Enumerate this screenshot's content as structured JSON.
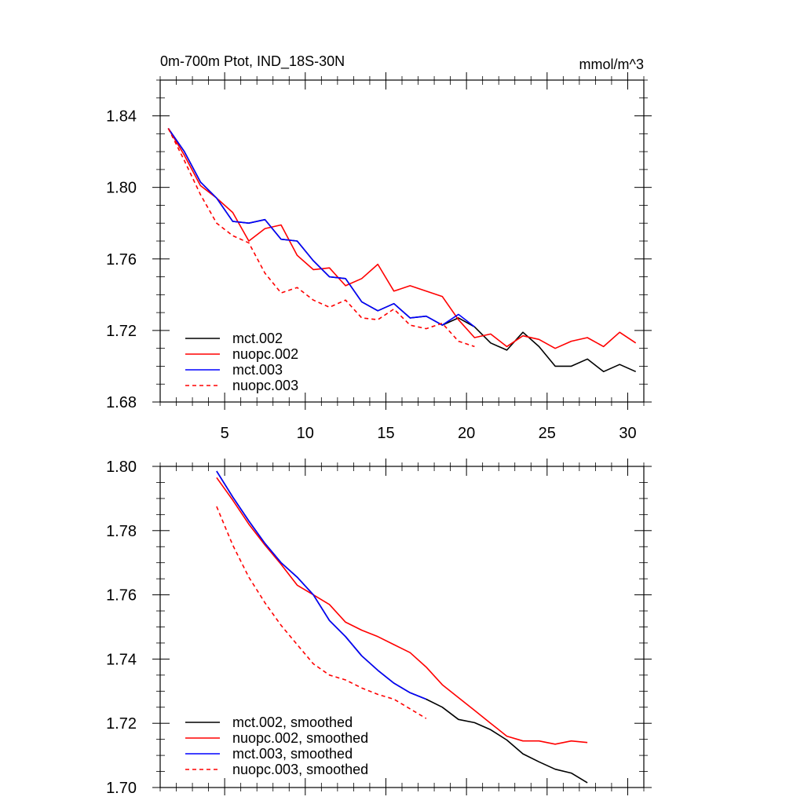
{
  "chart_data": [
    {
      "type": "line",
      "title": "0m-700m Ptot, IND_18S-30N",
      "units": "mmol/m^3",
      "xlim": [
        1,
        31
      ],
      "ylim": [
        1.68,
        1.86
      ],
      "xticks": [
        5,
        10,
        15,
        20,
        25,
        30
      ],
      "xtick_labels": [
        "5",
        "10",
        "15",
        "20",
        "25",
        "30"
      ],
      "yticks": [
        1.68,
        1.72,
        1.76,
        1.8,
        1.84
      ],
      "ytick_labels": [
        "1.68",
        "1.72",
        "1.76",
        "1.80",
        "1.84"
      ],
      "legend_position": "bottom-left",
      "series": [
        {
          "name": "mct.002",
          "color": "#000000",
          "dash": "solid",
          "x": [
            1.5,
            2.5,
            3.5,
            4.5,
            5.5,
            6.5,
            7.5,
            8.5,
            9.5,
            10.5,
            11.5,
            12.5,
            13.5,
            14.5,
            15.5,
            16.5,
            17.5,
            18.5,
            19.5,
            20.5,
            21.5,
            22.5,
            23.5,
            24.5,
            25.5,
            26.5,
            27.5,
            28.5,
            29.5,
            30.5
          ],
          "y": [
            1.833,
            1.82,
            1.803,
            1.794,
            1.781,
            1.78,
            1.782,
            1.771,
            1.77,
            1.759,
            1.75,
            1.749,
            1.736,
            1.731,
            1.735,
            1.727,
            1.728,
            1.723,
            1.727,
            1.722,
            1.713,
            1.709,
            1.719,
            1.711,
            1.7,
            1.7,
            1.704,
            1.697,
            1.701,
            1.697
          ]
        },
        {
          "name": "nuopc.002",
          "color": "#ff0000",
          "dash": "solid",
          "x": [
            1.5,
            2.5,
            3.5,
            4.5,
            5.5,
            6.5,
            7.5,
            8.5,
            9.5,
            10.5,
            11.5,
            12.5,
            13.5,
            14.5,
            15.5,
            16.5,
            17.5,
            18.5,
            19.5,
            20.5,
            21.5,
            22.5,
            23.5,
            24.5,
            25.5,
            26.5,
            27.5,
            28.5,
            29.5,
            30.5
          ],
          "y": [
            1.833,
            1.818,
            1.801,
            1.794,
            1.786,
            1.77,
            1.777,
            1.779,
            1.762,
            1.754,
            1.755,
            1.745,
            1.749,
            1.757,
            1.742,
            1.745,
            1.742,
            1.739,
            1.726,
            1.716,
            1.718,
            1.711,
            1.717,
            1.715,
            1.71,
            1.714,
            1.716,
            1.711,
            1.719,
            1.713
          ]
        },
        {
          "name": "mct.003",
          "color": "#0000ff",
          "dash": "solid",
          "x": [
            1.5,
            2.5,
            3.5,
            4.5,
            5.5,
            6.5,
            7.5,
            8.5,
            9.5,
            10.5,
            11.5,
            12.5,
            13.5,
            14.5,
            15.5,
            16.5,
            17.5,
            18.5,
            19.5,
            20.5
          ],
          "y": [
            1.833,
            1.82,
            1.803,
            1.794,
            1.781,
            1.78,
            1.782,
            1.771,
            1.77,
            1.759,
            1.75,
            1.749,
            1.736,
            1.731,
            1.735,
            1.727,
            1.728,
            1.723,
            1.729,
            1.722
          ]
        },
        {
          "name": "nuopc.003",
          "color": "#ff0000",
          "dash": "dashed",
          "x": [
            1.5,
            2.5,
            3.5,
            4.5,
            5.5,
            6.5,
            7.5,
            8.5,
            9.5,
            10.5,
            11.5,
            12.5,
            13.5,
            14.5,
            15.5,
            16.5,
            17.5,
            18.5,
            19.5,
            20.5
          ],
          "y": [
            1.833,
            1.815,
            1.796,
            1.78,
            1.773,
            1.769,
            1.752,
            1.741,
            1.744,
            1.737,
            1.733,
            1.737,
            1.727,
            1.726,
            1.732,
            1.723,
            1.721,
            1.724,
            1.714,
            1.711
          ]
        }
      ]
    },
    {
      "type": "line",
      "xlim": [
        1,
        31
      ],
      "ylim": [
        1.7,
        1.8
      ],
      "xticks": [
        5,
        10,
        15,
        20,
        25,
        30
      ],
      "yticks": [
        1.7,
        1.72,
        1.74,
        1.76,
        1.78,
        1.8
      ],
      "ytick_labels": [
        "1.70",
        "1.72",
        "1.74",
        "1.76",
        "1.78",
        "1.80"
      ],
      "legend_position": "bottom-left",
      "series": [
        {
          "name": "mct.002, smoothed",
          "color": "#000000",
          "dash": "solid",
          "x": [
            4.5,
            5.5,
            6.5,
            7.5,
            8.5,
            9.5,
            10.5,
            11.5,
            12.5,
            13.5,
            14.5,
            15.5,
            16.5,
            17.5,
            18.5,
            19.5,
            20.5,
            21.5,
            22.5,
            23.5,
            24.5,
            25.5,
            26.5,
            27.5
          ],
          "y": [
            1.7985,
            1.7905,
            1.783,
            1.776,
            1.77,
            1.7655,
            1.76,
            1.752,
            1.747,
            1.741,
            1.7365,
            1.7325,
            1.7295,
            1.7275,
            1.725,
            1.7212,
            1.7202,
            1.718,
            1.7148,
            1.7105,
            1.708,
            1.7057,
            1.7045,
            1.7015
          ]
        },
        {
          "name": "nuopc.002, smoothed",
          "color": "#ff0000",
          "dash": "solid",
          "x": [
            4.5,
            5.5,
            6.5,
            7.5,
            8.5,
            9.5,
            10.5,
            11.5,
            12.5,
            13.5,
            14.5,
            15.5,
            16.5,
            17.5,
            18.5,
            19.5,
            20.5,
            21.5,
            22.5,
            23.5,
            24.5,
            25.5,
            26.5,
            27.5
          ],
          "y": [
            1.7965,
            1.7895,
            1.782,
            1.7755,
            1.7695,
            1.763,
            1.76,
            1.757,
            1.7515,
            1.749,
            1.747,
            1.7445,
            1.742,
            1.7375,
            1.732,
            1.728,
            1.724,
            1.72,
            1.716,
            1.7145,
            1.7145,
            1.7135,
            1.7145,
            1.714
          ]
        },
        {
          "name": "mct.003, smoothed",
          "color": "#0000ff",
          "dash": "solid",
          "x": [
            4.5,
            5.5,
            6.5,
            7.5,
            8.5,
            9.5,
            10.5,
            11.5,
            12.5,
            13.5,
            14.5,
            15.5,
            16.5,
            17.5
          ],
          "y": [
            1.7985,
            1.7905,
            1.783,
            1.776,
            1.77,
            1.7655,
            1.76,
            1.752,
            1.747,
            1.741,
            1.7365,
            1.7325,
            1.7295,
            1.7275
          ]
        },
        {
          "name": "nuopc.003, smoothed",
          "color": "#ff0000",
          "dash": "dashed",
          "x": [
            4.5,
            5.5,
            6.5,
            7.5,
            8.5,
            9.5,
            10.5,
            11.5,
            12.5,
            13.5,
            14.5,
            15.5,
            16.5,
            17.5
          ],
          "y": [
            1.7875,
            1.7755,
            1.7655,
            1.7575,
            1.7505,
            1.7445,
            1.7385,
            1.735,
            1.7335,
            1.731,
            1.729,
            1.7275,
            1.7245,
            1.7215
          ]
        }
      ]
    }
  ]
}
